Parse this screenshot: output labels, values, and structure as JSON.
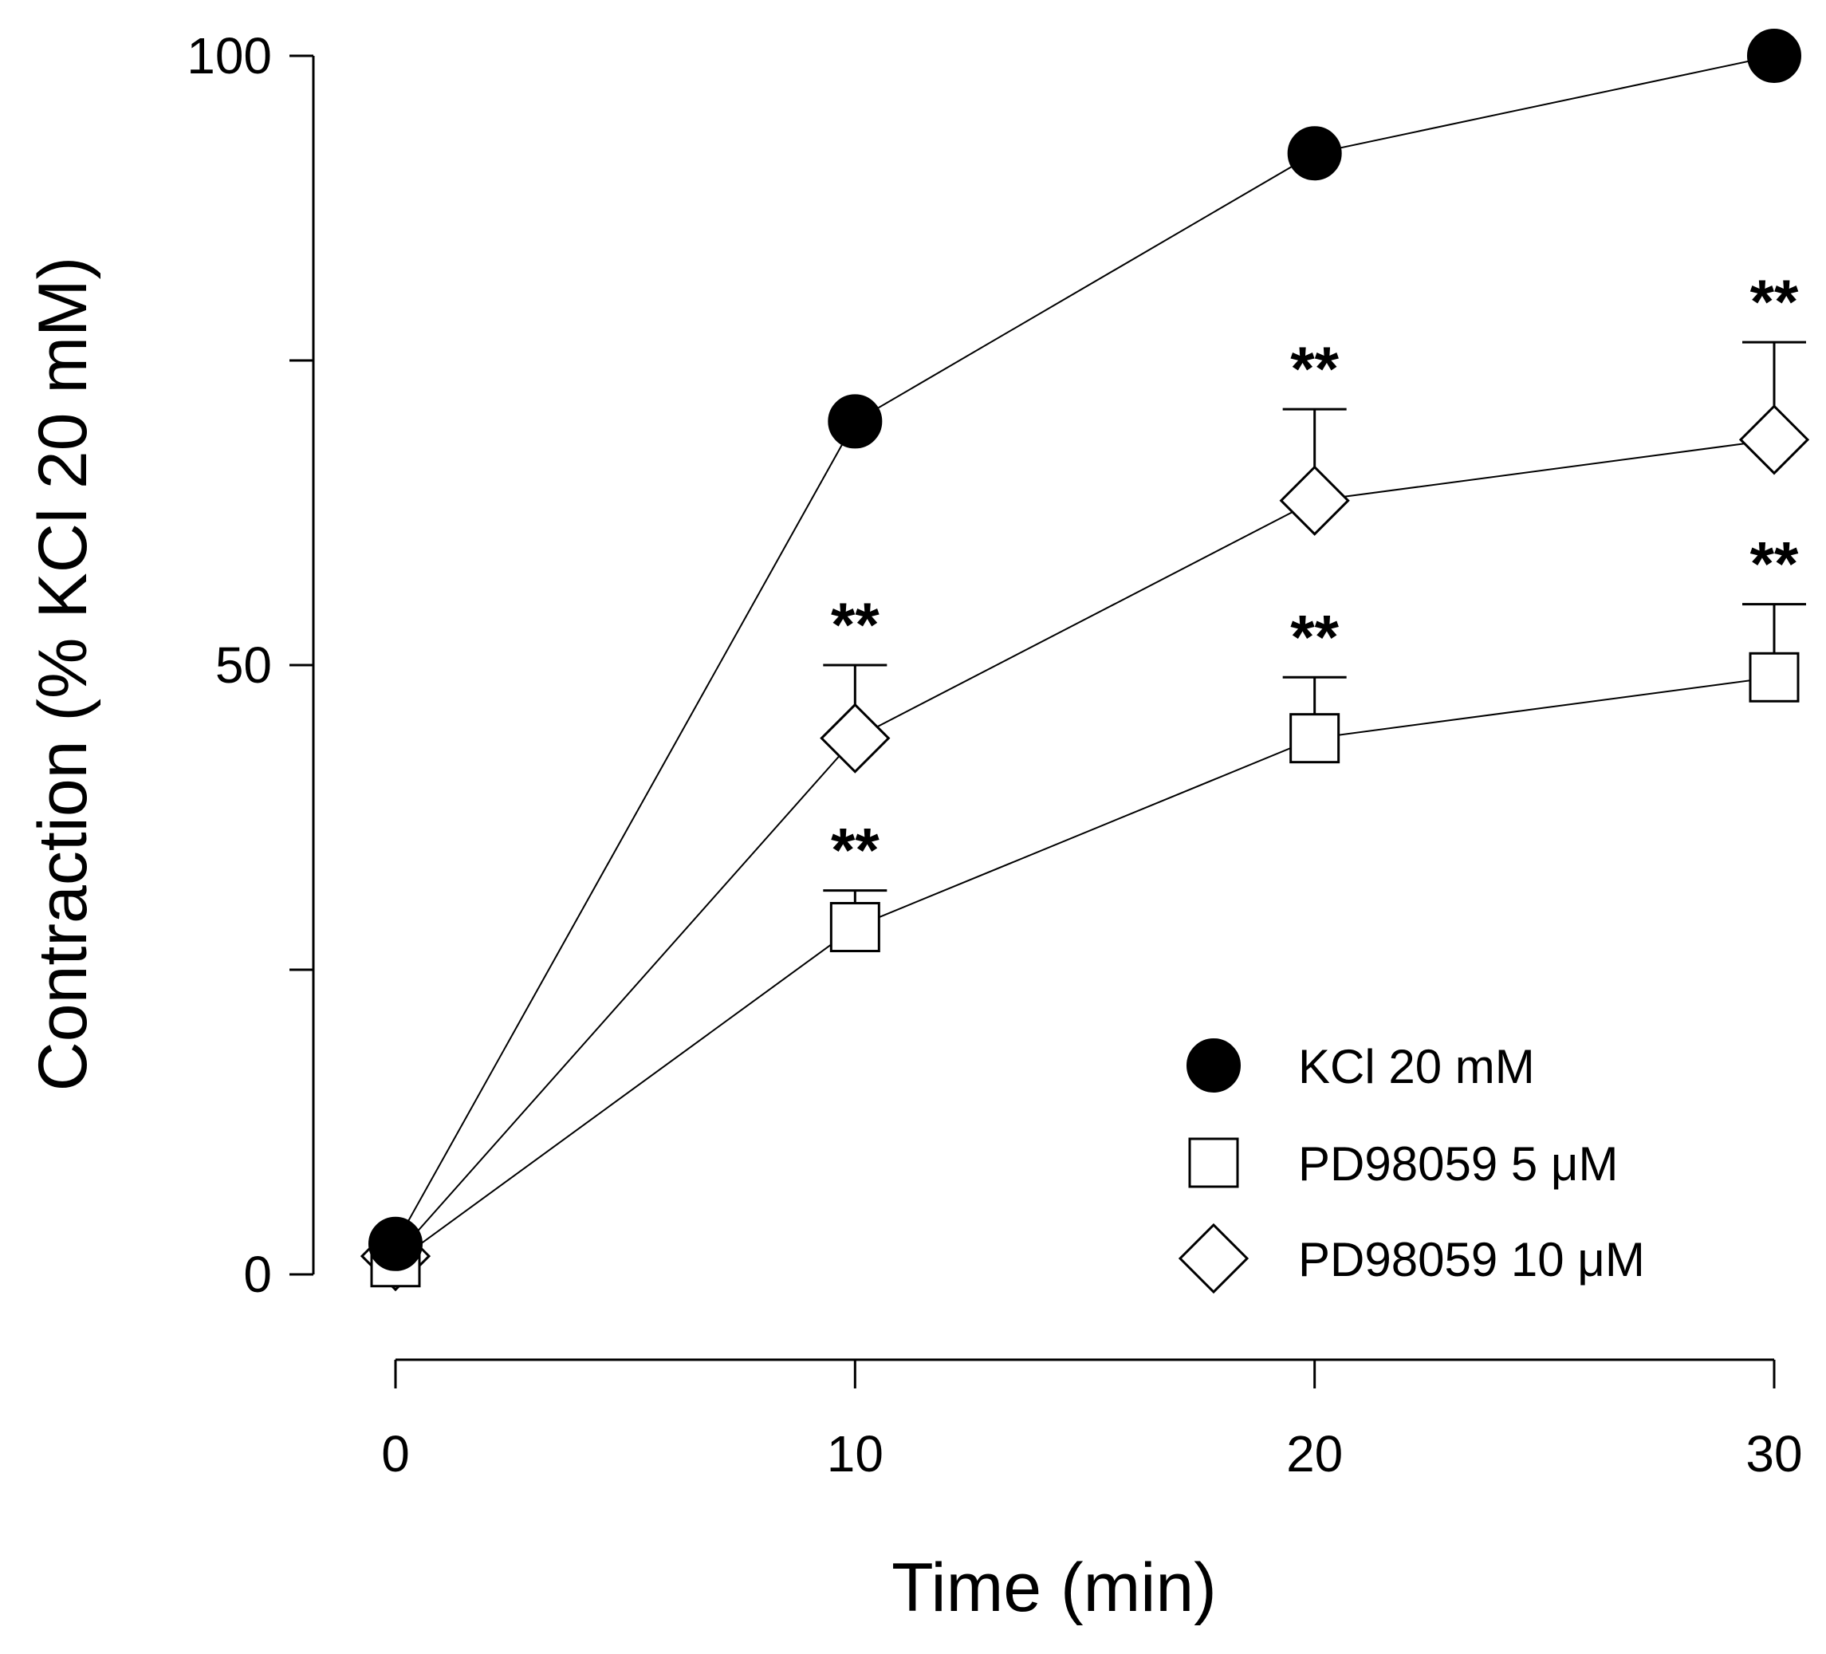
{
  "chart_data": {
    "type": "line",
    "title": "",
    "xlabel": "Time (min)",
    "ylabel": "Contraction (% KCl 20 mM)",
    "x": [
      0,
      10,
      20,
      30
    ],
    "xticks": [
      0,
      10,
      20,
      30
    ],
    "xtick_labels": [
      "0",
      "10",
      "20",
      "30"
    ],
    "xlim": [
      0,
      30
    ],
    "yticks": [
      0,
      25,
      50,
      75,
      100
    ],
    "ytick_labels": [
      "0",
      "",
      "50",
      "",
      "100"
    ],
    "ylim": [
      0,
      100
    ],
    "grid": false,
    "legend_position": "bottom-right",
    "series": [
      {
        "name": "KCl 20 mM",
        "marker": "filled-circle",
        "values": [
          2.5,
          70,
          92,
          100
        ],
        "errors": [
          0,
          0,
          0,
          0
        ],
        "annotations": [
          "",
          "",
          "",
          ""
        ]
      },
      {
        "name": "PD98059 5 μM",
        "marker": "open-square",
        "values": [
          1,
          28.5,
          44,
          49
        ],
        "errors": [
          0,
          3,
          5,
          6
        ],
        "annotations": [
          "",
          "**",
          "**",
          "**"
        ]
      },
      {
        "name": "PD98059 10 μM",
        "marker": "open-diamond",
        "values": [
          1.5,
          44,
          63.5,
          68.5
        ],
        "errors": [
          0,
          6,
          7.5,
          8
        ],
        "annotations": [
          "",
          "**",
          "**",
          "**"
        ]
      }
    ]
  }
}
